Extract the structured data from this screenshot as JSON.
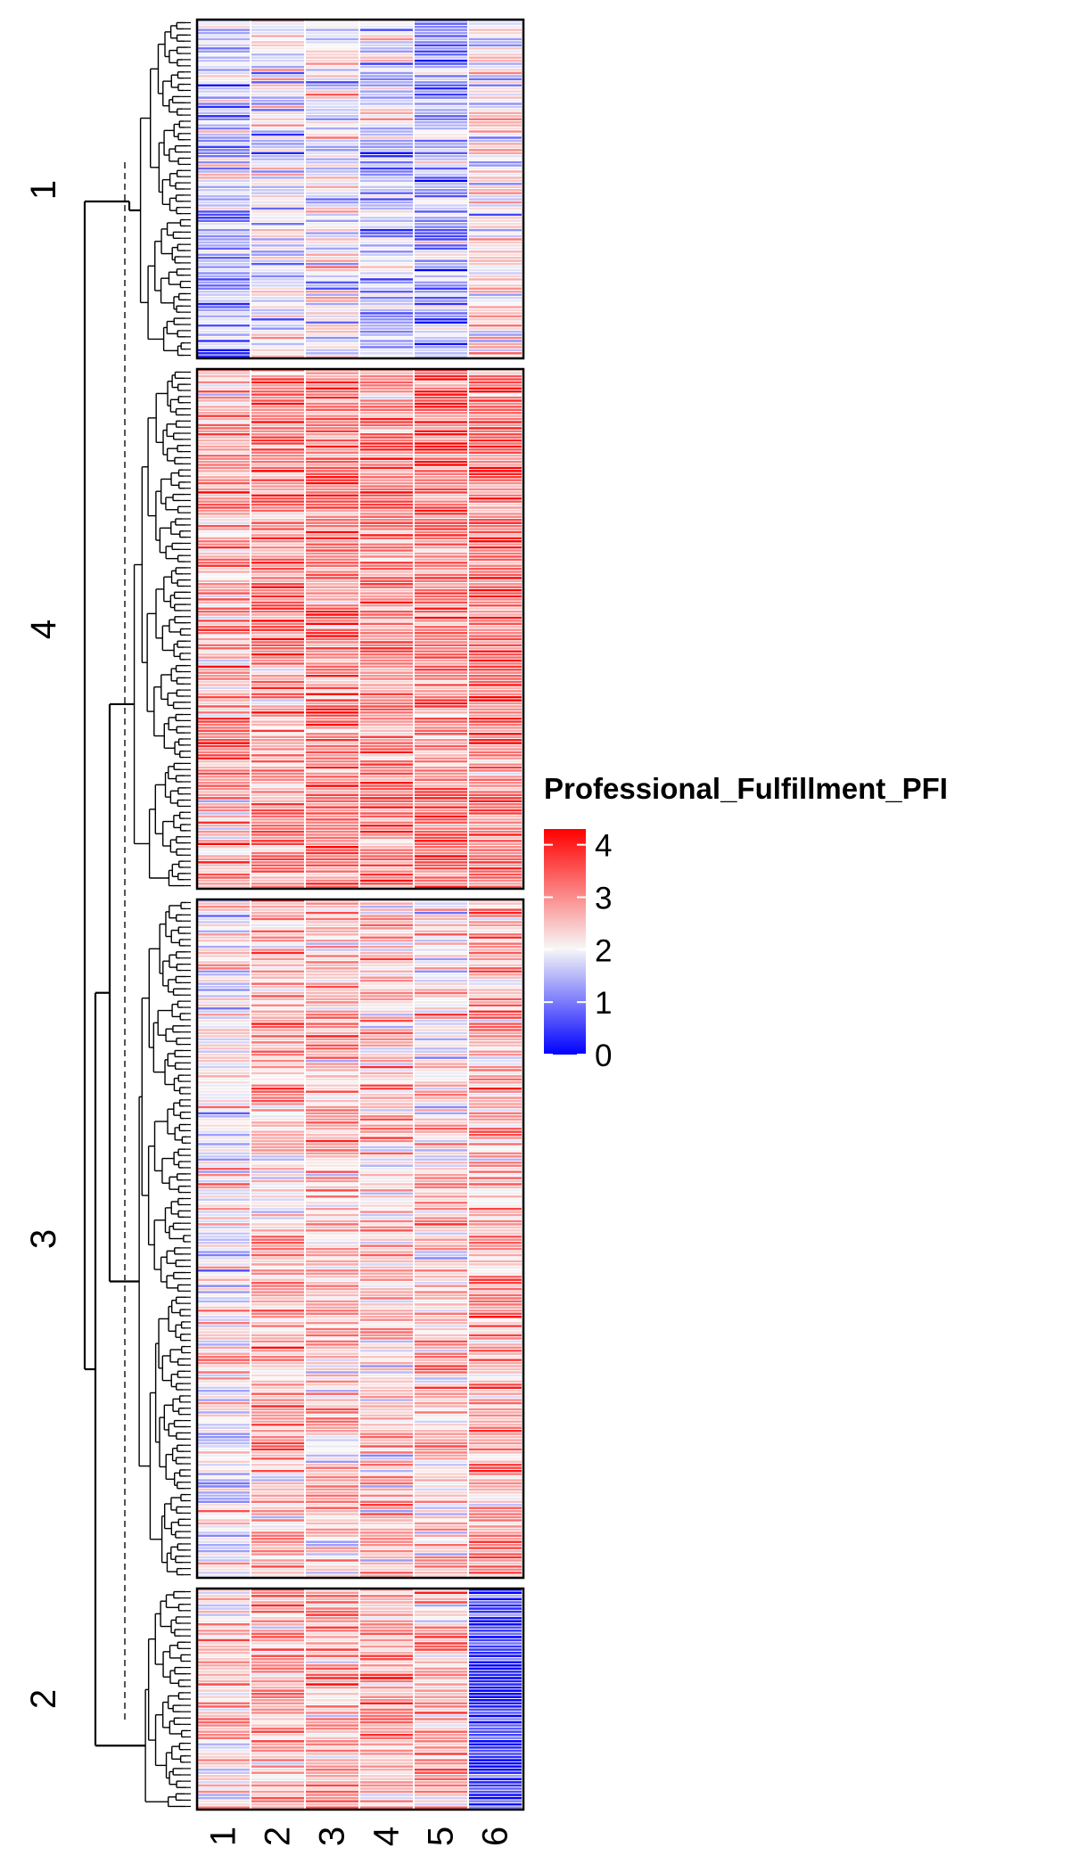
{
  "chart_data": {
    "type": "heatmap",
    "columns": [
      "1",
      "2",
      "3",
      "4",
      "5",
      "6"
    ],
    "clusters": [
      {
        "label": "1",
        "rows": 110,
        "column_means": [
          1.5,
          1.8,
          1.9,
          1.7,
          1.2,
          2.1
        ]
      },
      {
        "label": "4",
        "rows": 170,
        "column_means": [
          2.8,
          3.1,
          3.3,
          3.2,
          3.3,
          3.3
        ]
      },
      {
        "label": "3",
        "rows": 220,
        "column_means": [
          2.1,
          2.6,
          2.6,
          2.5,
          2.4,
          2.9
        ]
      },
      {
        "label": "2",
        "rows": 70,
        "column_means": [
          2.5,
          2.8,
          2.8,
          2.9,
          2.8,
          0.3
        ]
      }
    ],
    "legend": {
      "title": "Professional_Fulfillment_PFI",
      "ticks": [
        "4",
        "3",
        "2",
        "1",
        "0"
      ],
      "min": 0,
      "max": 4.3,
      "low_color": "#0000ff",
      "mid_color": "#f7f7f7",
      "high_color": "#ff0000"
    },
    "dendrogram_cut_line": true
  }
}
